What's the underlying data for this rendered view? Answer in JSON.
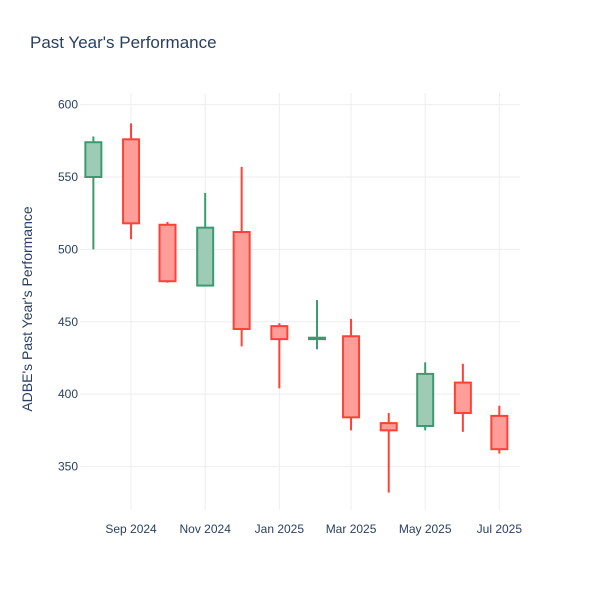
{
  "chart_data": {
    "type": "candlestick",
    "title": "Past Year's Performance",
    "xlabel": "",
    "ylabel": "ADBE's Past Year's Performance",
    "ylim": [
      320,
      608
    ],
    "yticks": [
      350,
      400,
      450,
      500,
      550,
      600
    ],
    "xlim": [
      "2024-07-21",
      "2025-07-18"
    ],
    "xticks": [
      {
        "date": "2024-09-01",
        "label": "Sep 2024"
      },
      {
        "date": "2024-11-01",
        "label": "Nov 2024"
      },
      {
        "date": "2025-01-01",
        "label": "Jan 2025"
      },
      {
        "date": "2025-03-01",
        "label": "Mar 2025"
      },
      {
        "date": "2025-05-01",
        "label": "May 2025"
      },
      {
        "date": "2025-07-01",
        "label": "Jul 2025"
      }
    ],
    "grid": true,
    "colors": {
      "increasing": "#3d9970",
      "decreasing": "#ff4136",
      "increasing_fill": "#9ecbb6",
      "decreasing_fill": "#ff9e99"
    },
    "candles": [
      {
        "date": "2024-08-01",
        "open": 550,
        "high": 578,
        "low": 500,
        "close": 574
      },
      {
        "date": "2024-09-01",
        "open": 576,
        "high": 587,
        "low": 507,
        "close": 518
      },
      {
        "date": "2024-10-01",
        "open": 517,
        "high": 519,
        "low": 477,
        "close": 478
      },
      {
        "date": "2024-11-01",
        "open": 475,
        "high": 539,
        "low": 475,
        "close": 515
      },
      {
        "date": "2024-12-01",
        "open": 512,
        "high": 557,
        "low": 433,
        "close": 445
      },
      {
        "date": "2025-01-01",
        "open": 447,
        "high": 449,
        "low": 404,
        "close": 438
      },
      {
        "date": "2025-02-01",
        "open": 438,
        "high": 465,
        "low": 431,
        "close": 439
      },
      {
        "date": "2025-03-01",
        "open": 440,
        "high": 452,
        "low": 375,
        "close": 384
      },
      {
        "date": "2025-04-01",
        "open": 380,
        "high": 387,
        "low": 332,
        "close": 375
      },
      {
        "date": "2025-05-01",
        "open": 378,
        "high": 422,
        "low": 375,
        "close": 414
      },
      {
        "date": "2025-06-01",
        "open": 408,
        "high": 421,
        "low": 374,
        "close": 387
      },
      {
        "date": "2025-07-01",
        "open": 385,
        "high": 392,
        "low": 359,
        "close": 362
      }
    ]
  }
}
